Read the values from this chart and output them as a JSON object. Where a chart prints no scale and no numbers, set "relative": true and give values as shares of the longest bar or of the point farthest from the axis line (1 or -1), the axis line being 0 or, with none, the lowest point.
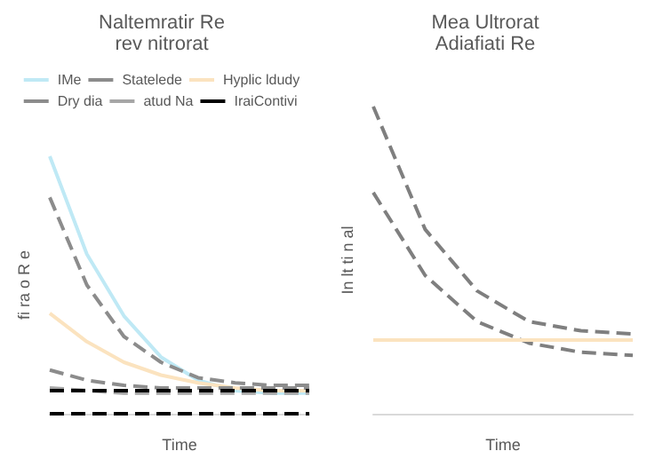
{
  "chart_data": [
    {
      "type": "line",
      "title": "Naltemratir Re\nrev nitrorat",
      "xlabel": "Time",
      "ylabel": "fi ra o R e",
      "relative": true,
      "legend": "top",
      "marker": "none",
      "grid": false,
      "categories": [
        null,
        null,
        null,
        null,
        null,
        null,
        null,
        null
      ],
      "series": [
        {
          "name": "IMe",
          "color": "#bfe9f5",
          "values": [
            1,
            0.62,
            0.38,
            0.22,
            0.13,
            0.09,
            0.08,
            0.08
          ]
        },
        {
          "name": "Statelede",
          "color": "#8c8c8c",
          "line_style": "dashed",
          "values": [
            0.84,
            0.5,
            0.3,
            0.2,
            0.14,
            0.12,
            0.11,
            0.11
          ]
        },
        {
          "name": "Hyplic ldudy",
          "color": "#fbe3bf",
          "values": [
            0.39,
            0.28,
            0.2,
            0.15,
            0.12,
            0.1,
            0.09,
            0.09
          ]
        },
        {
          "name": "Dry dia",
          "color": "#8c8c8c",
          "line_style": "dashed",
          "values": [
            0.17,
            0.13,
            0.11,
            0.1,
            0.1,
            0.1,
            0.1,
            0.1
          ]
        },
        {
          "name": "atud Na",
          "color": "#a6a6a6",
          "line_style": "dashed",
          "values": [
            0.1,
            0.09,
            0.08,
            0.08,
            0.08,
            0.08,
            0.08,
            0.08
          ]
        },
        {
          "name": "IraiContivi",
          "color": "#000000",
          "line_style": "dashed",
          "values": [
            0.09,
            0.09,
            0.09,
            0.09,
            0.09,
            0.09,
            0.09,
            0.09
          ]
        },
        {
          "color": "#000000",
          "line_style": "dashed",
          "values": [
            0,
            0,
            0,
            0,
            0,
            0,
            0,
            0
          ]
        }
      ]
    },
    {
      "type": "line",
      "title": "Mea Ultrorat\nAdiafiati Re",
      "xlabel": "Time",
      "ylabel": "In lt ti n al",
      "relative": true,
      "marker": "none",
      "grid": false,
      "categories": [
        null,
        null,
        null,
        null,
        null,
        null
      ],
      "series": [
        {
          "color": "#7f7f7f",
          "line_style": "dashed",
          "values": [
            1,
            0.6,
            0.4,
            0.3,
            0.27,
            0.26
          ]
        },
        {
          "color": "#7f7f7f",
          "line_style": "dashed",
          "values": [
            0.72,
            0.45,
            0.3,
            0.23,
            0.2,
            0.19
          ]
        },
        {
          "color": "#fbe3bf",
          "values": [
            0.24,
            0.24,
            0.24,
            0.24,
            0.24,
            0.24
          ]
        }
      ]
    }
  ]
}
